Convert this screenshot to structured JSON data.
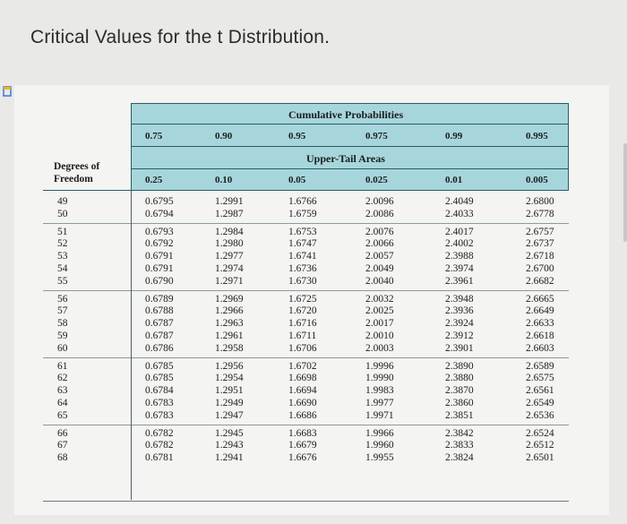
{
  "title": "Critical Values for the t Distribution.",
  "table": {
    "cumulative_label": "Cumulative Probabilities",
    "upper_tail_label": "Upper-Tail Areas",
    "df_label_line1": "Degrees of",
    "df_label_line2": "Freedom",
    "cumulative": [
      "0.75",
      "0.90",
      "0.95",
      "0.975",
      "0.99",
      "0.995"
    ],
    "upper_tail": [
      "0.25",
      "0.10",
      "0.05",
      "0.025",
      "0.01",
      "0.005"
    ],
    "groups": [
      [
        [
          "49",
          "0.6795",
          "1.2991",
          "1.6766",
          "2.0096",
          "2.4049",
          "2.6800"
        ],
        [
          "50",
          "0.6794",
          "1.2987",
          "1.6759",
          "2.0086",
          "2.4033",
          "2.6778"
        ]
      ],
      [
        [
          "51",
          "0.6793",
          "1.2984",
          "1.6753",
          "2.0076",
          "2.4017",
          "2.6757"
        ],
        [
          "52",
          "0.6792",
          "1.2980",
          "1.6747",
          "2.0066",
          "2.4002",
          "2.6737"
        ],
        [
          "53",
          "0.6791",
          "1.2977",
          "1.6741",
          "2.0057",
          "2.3988",
          "2.6718"
        ],
        [
          "54",
          "0.6791",
          "1.2974",
          "1.6736",
          "2.0049",
          "2.3974",
          "2.6700"
        ],
        [
          "55",
          "0.6790",
          "1.2971",
          "1.6730",
          "2.0040",
          "2.3961",
          "2.6682"
        ]
      ],
      [
        [
          "56",
          "0.6789",
          "1.2969",
          "1.6725",
          "2.0032",
          "2.3948",
          "2.6665"
        ],
        [
          "57",
          "0.6788",
          "1.2966",
          "1.6720",
          "2.0025",
          "2.3936",
          "2.6649"
        ],
        [
          "58",
          "0.6787",
          "1.2963",
          "1.6716",
          "2.0017",
          "2.3924",
          "2.6633"
        ],
        [
          "59",
          "0.6787",
          "1.2961",
          "1.6711",
          "2.0010",
          "2.3912",
          "2.6618"
        ],
        [
          "60",
          "0.6786",
          "1.2958",
          "1.6706",
          "2.0003",
          "2.3901",
          "2.6603"
        ]
      ],
      [
        [
          "61",
          "0.6785",
          "1.2956",
          "1.6702",
          "1.9996",
          "2.3890",
          "2.6589"
        ],
        [
          "62",
          "0.6785",
          "1.2954",
          "1.6698",
          "1.9990",
          "2.3880",
          "2.6575"
        ],
        [
          "63",
          "0.6784",
          "1.2951",
          "1.6694",
          "1.9983",
          "2.3870",
          "2.6561"
        ],
        [
          "64",
          "0.6783",
          "1.2949",
          "1.6690",
          "1.9977",
          "2.3860",
          "2.6549"
        ],
        [
          "65",
          "0.6783",
          "1.2947",
          "1.6686",
          "1.9971",
          "2.3851",
          "2.6536"
        ]
      ],
      [
        [
          "66",
          "0.6782",
          "1.2945",
          "1.6683",
          "1.9966",
          "2.3842",
          "2.6524"
        ],
        [
          "67",
          "0.6782",
          "1.2943",
          "1.6679",
          "1.9960",
          "2.3833",
          "2.6512"
        ],
        [
          "68",
          "0.6781",
          "1.2941",
          "1.6676",
          "1.9955",
          "2.3824",
          "2.6501"
        ]
      ]
    ]
  }
}
